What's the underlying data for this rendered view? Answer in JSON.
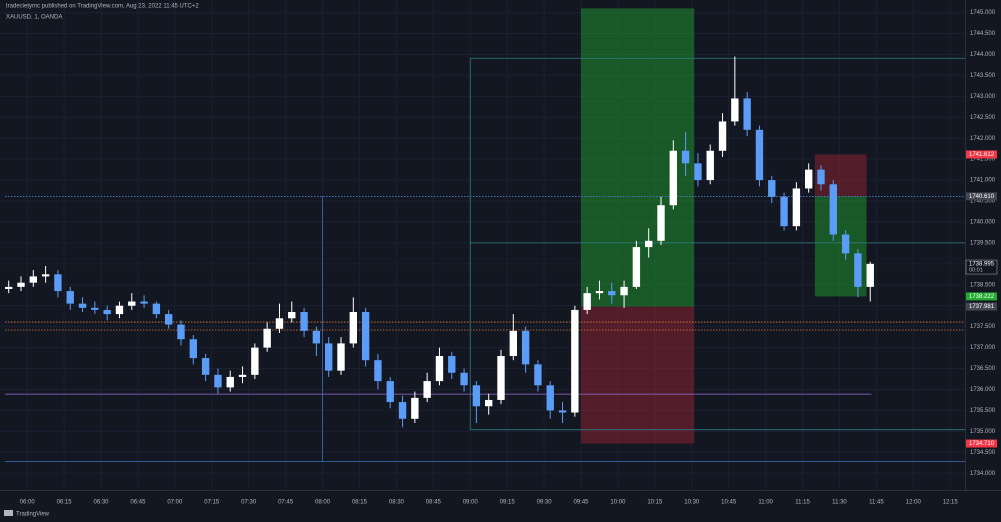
{
  "header": {
    "publisher": "tradecietymc published on TradingView.com, Aug 23, 2022 11:45 UTC+2",
    "symbol": "XAUUSD, 1, OANDA",
    "footer": "TradingView"
  },
  "chart_data": {
    "type": "candlestick",
    "x": [
      "05:50",
      "05:55",
      "06:00",
      "06:05",
      "06:10",
      "06:15",
      "06:20",
      "06:25",
      "06:30",
      "06:35",
      "06:40",
      "06:45",
      "06:50",
      "06:55",
      "07:00",
      "07:05",
      "07:10",
      "07:15",
      "07:20",
      "07:25",
      "07:30",
      "07:35",
      "07:40",
      "07:45",
      "07:50",
      "07:55",
      "08:00",
      "08:05",
      "08:10",
      "08:15",
      "08:20",
      "08:25",
      "08:30",
      "08:35",
      "08:40",
      "08:45",
      "08:50",
      "08:55",
      "09:00",
      "09:05",
      "09:10",
      "09:15",
      "09:20",
      "09:25",
      "09:30",
      "09:35",
      "09:40",
      "09:45",
      "09:50",
      "09:55",
      "10:00",
      "10:05",
      "10:10",
      "10:15",
      "10:20",
      "10:25",
      "10:30",
      "10:35",
      "10:40",
      "10:45",
      "10:50",
      "10:55",
      "11:00",
      "11:05",
      "11:10",
      "11:15",
      "11:20",
      "11:25",
      "11:30",
      "11:35",
      "11:40"
    ],
    "open": [
      1738.4,
      1738.45,
      1738.55,
      1738.7,
      1738.75,
      1738.35,
      1738.05,
      1737.95,
      1737.9,
      1737.8,
      1738.0,
      1738.1,
      1738.05,
      1737.8,
      1737.55,
      1737.2,
      1736.75,
      1736.35,
      1736.05,
      1736.3,
      1736.35,
      1737.0,
      1737.45,
      1737.7,
      1737.85,
      1737.4,
      1737.1,
      1736.45,
      1737.1,
      1737.85,
      1736.7,
      1736.2,
      1735.7,
      1735.3,
      1735.8,
      1736.2,
      1736.8,
      1736.4,
      1736.1,
      1735.6,
      1735.75,
      1736.8,
      1737.4,
      1736.6,
      1736.1,
      1735.5,
      1735.45,
      1737.9,
      1738.3,
      1738.35,
      1738.25,
      1738.45,
      1739.4,
      1739.55,
      1740.4,
      1741.7,
      1741.4,
      1741.0,
      1741.7,
      1742.4,
      1742.95,
      1742.2,
      1741.0,
      1740.6,
      1739.9,
      1740.8,
      1741.25,
      1740.9,
      1739.7,
      1739.25,
      1738.45
    ],
    "high": [
      1738.6,
      1738.7,
      1738.85,
      1738.95,
      1738.85,
      1738.45,
      1738.2,
      1738.1,
      1738.0,
      1738.1,
      1738.3,
      1738.25,
      1738.1,
      1737.9,
      1737.65,
      1737.3,
      1736.85,
      1736.5,
      1736.45,
      1736.55,
      1737.1,
      1737.6,
      1738.05,
      1738.1,
      1737.95,
      1737.5,
      1737.25,
      1737.25,
      1738.2,
      1737.95,
      1736.85,
      1736.3,
      1735.85,
      1735.95,
      1736.4,
      1737.0,
      1736.9,
      1736.5,
      1736.2,
      1735.9,
      1736.95,
      1737.8,
      1737.5,
      1736.7,
      1736.2,
      1735.7,
      1738.0,
      1738.45,
      1738.6,
      1738.55,
      1738.6,
      1739.55,
      1739.85,
      1740.6,
      1741.95,
      1742.15,
      1741.65,
      1741.85,
      1742.6,
      1743.95,
      1743.1,
      1742.3,
      1741.1,
      1740.7,
      1740.95,
      1741.4,
      1741.35,
      1741.0,
      1739.8,
      1739.35,
      1739.05
    ],
    "low": [
      1738.3,
      1738.35,
      1738.45,
      1738.55,
      1738.2,
      1737.9,
      1737.85,
      1737.8,
      1737.65,
      1737.7,
      1737.9,
      1737.95,
      1737.7,
      1737.45,
      1737.05,
      1736.6,
      1736.2,
      1735.9,
      1735.95,
      1736.15,
      1736.25,
      1736.9,
      1737.35,
      1737.6,
      1737.25,
      1736.8,
      1736.3,
      1736.35,
      1737.0,
      1736.55,
      1736.0,
      1735.55,
      1735.1,
      1735.2,
      1735.7,
      1736.1,
      1736.25,
      1735.95,
      1735.2,
      1735.4,
      1735.65,
      1736.7,
      1736.4,
      1735.95,
      1735.3,
      1735.2,
      1735.35,
      1737.8,
      1738.15,
      1738.05,
      1737.95,
      1738.4,
      1739.15,
      1739.45,
      1740.3,
      1741.1,
      1740.85,
      1740.9,
      1741.55,
      1742.3,
      1742.05,
      1740.85,
      1740.45,
      1739.8,
      1739.8,
      1740.7,
      1740.75,
      1739.55,
      1739.1,
      1738.2,
      1738.1
    ],
    "close": [
      1738.45,
      1738.55,
      1738.7,
      1738.75,
      1738.35,
      1738.05,
      1737.95,
      1737.9,
      1737.8,
      1738.0,
      1738.1,
      1738.05,
      1737.8,
      1737.55,
      1737.2,
      1736.75,
      1736.35,
      1736.05,
      1736.3,
      1736.35,
      1737.0,
      1737.45,
      1737.7,
      1737.85,
      1737.4,
      1737.1,
      1736.45,
      1737.1,
      1737.85,
      1736.7,
      1736.2,
      1735.7,
      1735.3,
      1735.8,
      1736.2,
      1736.8,
      1736.4,
      1736.1,
      1735.6,
      1735.75,
      1736.8,
      1737.4,
      1736.6,
      1736.1,
      1735.5,
      1735.45,
      1737.9,
      1738.3,
      1738.35,
      1738.25,
      1738.45,
      1739.4,
      1739.55,
      1740.4,
      1741.7,
      1741.4,
      1741.0,
      1741.7,
      1742.4,
      1742.95,
      1742.2,
      1741.0,
      1740.6,
      1739.9,
      1740.8,
      1741.25,
      1740.9,
      1739.7,
      1739.25,
      1738.45,
      1739.0
    ],
    "up_color": "#ffffff",
    "down_color": "#5b9cf6",
    "xlim": [
      "05:51",
      "12:21"
    ],
    "xticks": [
      "06:00",
      "06:15",
      "06:30",
      "06:45",
      "07:00",
      "07:15",
      "07:30",
      "07:45",
      "08:00",
      "08:15",
      "08:30",
      "08:45",
      "09:00",
      "09:15",
      "09:30",
      "09:45",
      "10:00",
      "10:15",
      "10:30",
      "10:45",
      "11:00",
      "11:15",
      "11:30",
      "11:45",
      "12:00",
      "12:15"
    ],
    "ylim": [
      1733.6,
      1745.3
    ],
    "yticks": [
      {
        "value": 1734,
        "label": "1734.000"
      },
      {
        "value": 1734.5,
        "label": "1734.500"
      },
      {
        "value": 1735,
        "label": "1735.000"
      },
      {
        "value": 1735.5,
        "label": "1735.500"
      },
      {
        "value": 1736,
        "label": "1736.000"
      },
      {
        "value": 1736.5,
        "label": "1736.500"
      },
      {
        "value": 1737,
        "label": "1737.000"
      },
      {
        "value": 1737.5,
        "label": "1737.500"
      },
      {
        "value": 1738,
        "label": "1738.000"
      },
      {
        "value": 1738.5,
        "label": "1738.500"
      },
      {
        "value": 1739,
        "label": "1739.000"
      },
      {
        "value": 1739.5,
        "label": "1739.500"
      },
      {
        "value": 1740,
        "label": "1740.000"
      },
      {
        "value": 1740.5,
        "label": "1740.500"
      },
      {
        "value": 1741,
        "label": "1741.000"
      },
      {
        "value": 1741.5,
        "label": "1741.500"
      },
      {
        "value": 1742,
        "label": "1742.000"
      },
      {
        "value": 1742.5,
        "label": "1742.500"
      },
      {
        "value": 1743,
        "label": "1743.000"
      },
      {
        "value": 1743.5,
        "label": "1743.500"
      },
      {
        "value": 1744,
        "label": "1744.000"
      },
      {
        "value": 1744.5,
        "label": "1744.500"
      },
      {
        "value": 1745,
        "label": "1745.000"
      }
    ],
    "grid": true,
    "hlines": [
      {
        "price": 1740.61,
        "from": "05:51",
        "to": "12:21",
        "color": "#4a7fd4",
        "dash": true
      },
      {
        "price": 1737.61,
        "from": "05:51",
        "to": "12:21",
        "color": "#e07b39",
        "dash": true
      },
      {
        "price": 1737.42,
        "from": "05:51",
        "to": "12:21",
        "color": "#e07b39",
        "dash": true
      },
      {
        "price": 1735.89,
        "from": "05:51",
        "to": "11:43",
        "color": "#9c6ad4",
        "dash": false
      },
      {
        "price": 1734.28,
        "from": "05:51",
        "to": "12:21",
        "color": "#3f6fb5",
        "dash": false
      },
      {
        "price": 1743.91,
        "from": "09:00",
        "to": "12:21",
        "color": "#2e7d84",
        "dash": false
      },
      {
        "price": 1739.5,
        "from": "09:00",
        "to": "12:21",
        "color": "#2e7d84",
        "dash": false
      },
      {
        "price": 1735.04,
        "from": "09:00",
        "to": "12:21",
        "color": "#2e7d84",
        "dash": false
      }
    ],
    "vlines": [
      {
        "time": "08:00",
        "from": 1734.28,
        "to": 1740.61,
        "color": "#3f6fb5"
      },
      {
        "time": "09:00",
        "from": 1735.04,
        "to": 1743.91,
        "color": "#2e7d84"
      }
    ],
    "positions": [
      {
        "from": "09:45",
        "to": "10:31",
        "entry": 1737.981,
        "target": 1745.1,
        "stop": 1734.71
      },
      {
        "from": "11:20",
        "to": "11:41",
        "entry": 1740.61,
        "target": 1738.222,
        "stop": 1741.612
      }
    ],
    "price_labels": [
      {
        "value": 1741.612,
        "label": "1741.612",
        "color": "#f23645"
      },
      {
        "value": 1740.61,
        "label": "1740.610",
        "color": "#434651"
      },
      {
        "value": 1738.995,
        "label": "1738.995",
        "color": "#ffffff",
        "note": "00:01"
      },
      {
        "value": 1738.222,
        "label": "1738.222",
        "color": "#22ab2e"
      },
      {
        "value": 1737.981,
        "label": "1737.981",
        "color": "#434651"
      },
      {
        "value": 1734.71,
        "label": "1734.710",
        "color": "#f23645"
      }
    ]
  }
}
